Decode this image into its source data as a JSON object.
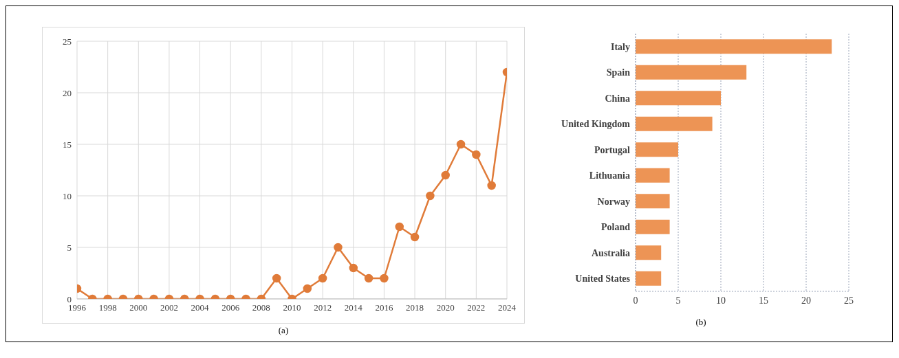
{
  "chart_data": [
    {
      "type": "line",
      "x": [
        1996,
        1997,
        1998,
        1999,
        2000,
        2001,
        2002,
        2003,
        2004,
        2005,
        2006,
        2007,
        2008,
        2009,
        2010,
        2011,
        2012,
        2013,
        2014,
        2015,
        2016,
        2017,
        2018,
        2019,
        2020,
        2021,
        2022,
        2023,
        2024
      ],
      "series": [
        {
          "color": "#e07b39",
          "values": [
            1,
            0,
            0,
            0,
            0,
            0,
            0,
            0,
            0,
            0,
            0,
            0,
            0,
            2,
            0,
            1,
            2,
            5,
            3,
            2,
            2,
            7,
            6,
            10,
            12,
            15,
            14,
            11,
            22
          ]
        }
      ],
      "xlim": [
        1996,
        2024
      ],
      "xticks": [
        1996,
        1998,
        2000,
        2002,
        2004,
        2006,
        2008,
        2010,
        2012,
        2014,
        2016,
        2018,
        2020,
        2022,
        2024
      ],
      "ylim": [
        0,
        25
      ],
      "yticks": [
        0,
        5,
        10,
        15,
        20,
        25
      ],
      "grid": true,
      "marker": "circle",
      "line_style": "solid",
      "legend": false,
      "annotations": [
        "(a)"
      ]
    },
    {
      "type": "bar",
      "orientation": "horizontal",
      "categories": [
        "Italy",
        "Spain",
        "China",
        "United Kingdom",
        "Portugal",
        "Lithuania",
        "Norway",
        "Poland",
        "Australia",
        "United States"
      ],
      "series": [
        {
          "color": "#ed9455",
          "values": [
            23,
            13,
            10,
            9,
            5,
            4,
            4,
            4,
            3,
            3
          ]
        }
      ],
      "xlim": [
        0,
        25
      ],
      "xticks": [
        0,
        5,
        10,
        15,
        20,
        25
      ],
      "grid": "x",
      "legend": false,
      "annotations": [
        "(b)"
      ]
    }
  ]
}
